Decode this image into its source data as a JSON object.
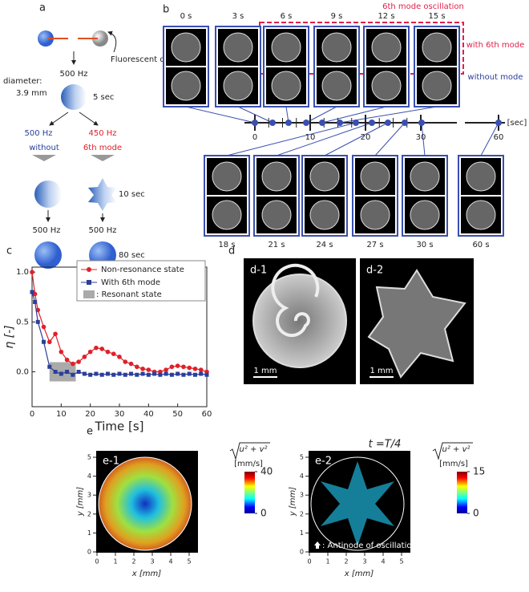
{
  "panel_a": {
    "label": "a",
    "dye": "Fluorescent dye",
    "freq_1": "500 Hz",
    "diameter": "diameter:",
    "diameter_value": "3.9 mm",
    "time_1": "5 sec",
    "left_freq": "500 Hz",
    "left_mode": "without",
    "right_freq": "450 Hz",
    "right_mode": "6th mode",
    "time_2": "10 sec",
    "left_freq_2": "500 Hz",
    "right_freq_2": "500 Hz",
    "time_3": "80 sec"
  },
  "panel_b": {
    "label": "b",
    "top_times": [
      "0 s",
      "3 s",
      "6 s",
      "9 s",
      "12 s",
      "15 s"
    ],
    "bottom_times": [
      "18 s",
      "21 s",
      "24 s",
      "27 s",
      "30 s",
      "60 s"
    ],
    "oscillation_label": "6th mode oscillation",
    "row_with": "with 6th mode",
    "row_without": "without mode",
    "timeline_ticks": [
      0,
      10,
      20,
      30,
      60
    ],
    "timeline_unit": "[sec]"
  },
  "chart_data": {
    "type": "line",
    "label": "c",
    "x_label": "Time [s]",
    "y_label": "η [-]",
    "x": [
      0,
      1,
      2,
      4,
      6,
      8,
      10,
      12,
      14,
      16,
      18,
      20,
      22,
      24,
      26,
      28,
      30,
      32,
      34,
      36,
      38,
      40,
      42,
      44,
      46,
      48,
      50,
      52,
      54,
      56,
      58,
      60
    ],
    "series": [
      {
        "name": "Non-resonance state",
        "color": "#e0202a",
        "marker": "circle",
        "values": [
          1.0,
          0.78,
          0.62,
          0.45,
          0.3,
          0.38,
          0.2,
          0.12,
          0.08,
          0.1,
          0.15,
          0.2,
          0.24,
          0.23,
          0.2,
          0.18,
          0.15,
          0.1,
          0.08,
          0.05,
          0.03,
          0.02,
          0.0,
          0.0,
          0.02,
          0.05,
          0.06,
          0.05,
          0.04,
          0.03,
          0.02,
          0.0
        ]
      },
      {
        "name": "With 6th mode",
        "color": "#2b3f99",
        "marker": "square",
        "values": [
          0.8,
          0.7,
          0.5,
          0.3,
          0.05,
          0.0,
          -0.02,
          0.0,
          -0.03,
          0.0,
          -0.02,
          -0.03,
          -0.02,
          -0.03,
          -0.02,
          -0.03,
          -0.02,
          -0.03,
          -0.02,
          -0.03,
          -0.02,
          -0.03,
          -0.02,
          -0.03,
          -0.02,
          -0.03,
          -0.02,
          -0.03,
          -0.02,
          -0.03,
          -0.02,
          -0.03
        ]
      }
    ],
    "resonant_range": [
      6,
      15
    ],
    "resonant_label": ": Resonant state",
    "xlim": [
      0,
      60
    ],
    "xticks": [
      0,
      10,
      20,
      30,
      40,
      50,
      60
    ],
    "ylim": [
      -0.35,
      1.05
    ],
    "yticks": [
      {
        "value": 0,
        "label": "0.0"
      },
      0.5,
      {
        "value": 1,
        "label": "1.0"
      }
    ],
    "legend": "upper right"
  },
  "panel_d": {
    "label": "d",
    "left": "d-1",
    "right": "d-2",
    "scale_left": "1 mm",
    "scale_right": "1 mm"
  },
  "panel_e": {
    "label": "e",
    "left": "e-1",
    "right": "e-2",
    "phase": "t =T/4",
    "magnitude_left": "u² + v²",
    "magnitude_right": "u² + v²",
    "unit_left": "[mm/s]",
    "unit_right": "[mm/s]",
    "x_label": "x [mm]",
    "y_label": "y [mm]",
    "axis_ticks": [
      0,
      1,
      2,
      3,
      4,
      5
    ],
    "colorbar_left": [
      0,
      40
    ],
    "colorbar_right": [
      0,
      15
    ],
    "antinode": ": Antinode of oscillation"
  }
}
